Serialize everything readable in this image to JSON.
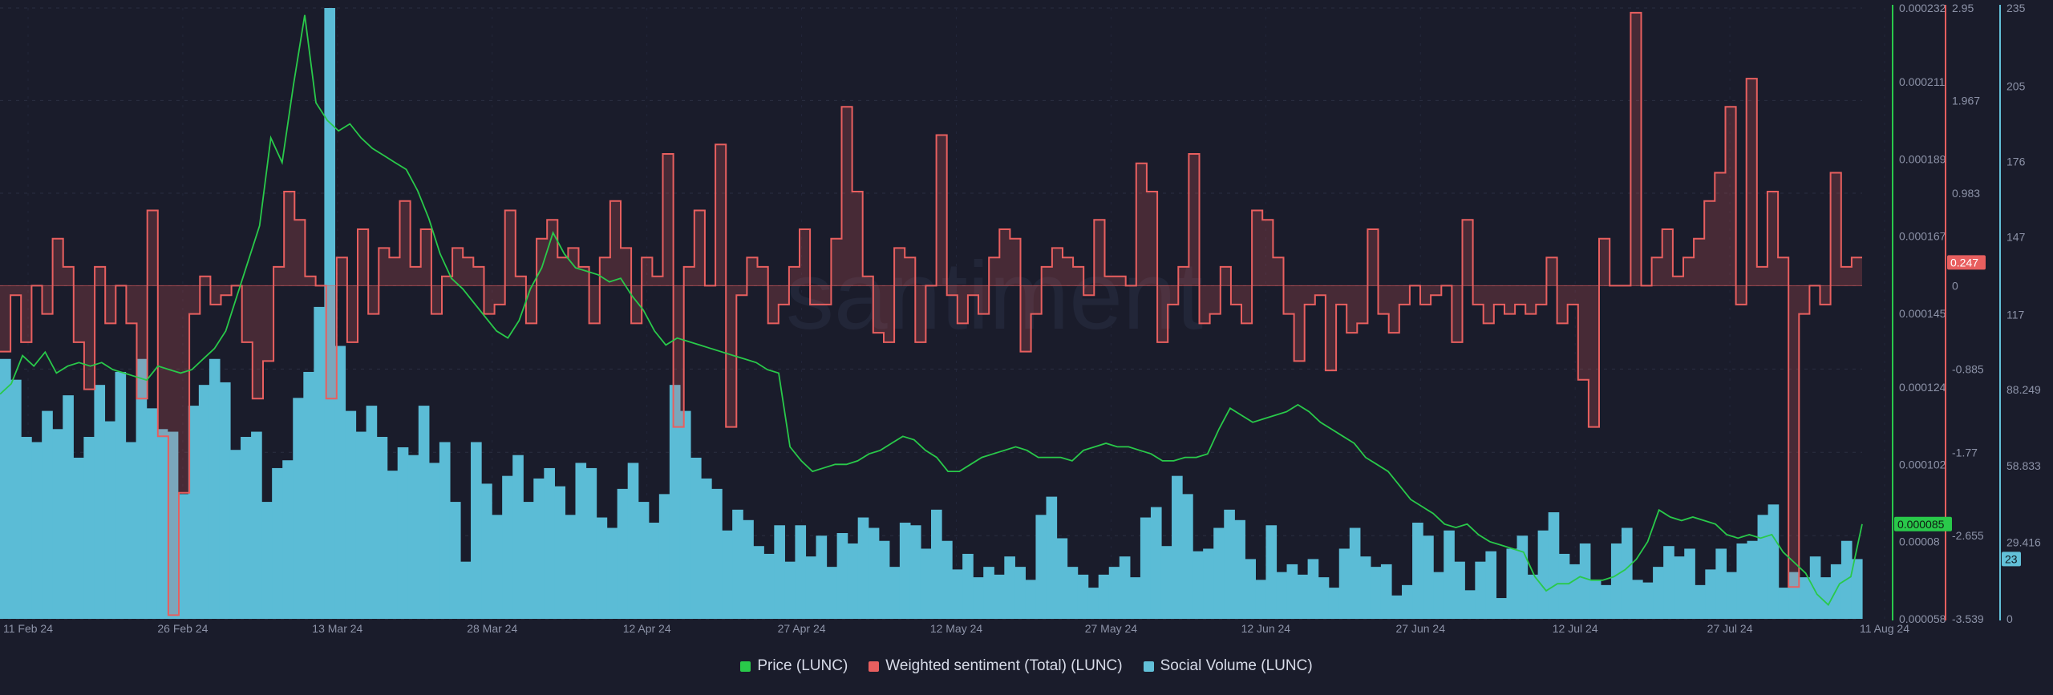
{
  "chart_data": {
    "type": "line",
    "watermark": "santiment",
    "x_ticks": [
      "11 Feb 24",
      "26 Feb 24",
      "13 Mar 24",
      "28 Mar 24",
      "12 Apr 24",
      "27 Apr 24",
      "12 May 24",
      "27 May 24",
      "12 Jun 24",
      "27 Jun 24",
      "12 Jul 24",
      "27 Jul 24",
      "11 Aug 24"
    ],
    "axes": {
      "price": {
        "ticks": [
          "0.000232",
          "0.000211",
          "0.000189",
          "0.000167",
          "0.000145",
          "0.000124",
          "0.000102",
          "0.00008",
          "0.000058"
        ],
        "range": [
          5.8e-05,
          0.000232
        ],
        "color": "#29c94a"
      },
      "sentiment": {
        "ticks": [
          "2.95",
          "1.967",
          "0.983",
          "0",
          "-0.885",
          "-1.77",
          "-2.655",
          "-3.539"
        ],
        "range": [
          -3.539,
          2.95
        ],
        "color": "#e85f5f"
      },
      "social": {
        "ticks": [
          "235",
          "205",
          "176",
          "147",
          "117",
          "88.249",
          "58.833",
          "29.416",
          "0"
        ],
        "range": [
          0,
          235
        ],
        "color": "#62c0d8"
      }
    },
    "current": {
      "price": "0.000085",
      "sentiment": "0.247",
      "social": "23"
    },
    "series": [
      {
        "name": "Price (LUNC)",
        "axis": "price",
        "values": [
          0.000122,
          0.000125,
          0.000133,
          0.00013,
          0.000134,
          0.000128,
          0.00013,
          0.000131,
          0.00013,
          0.000131,
          0.000129,
          0.000128,
          0.000127,
          0.000126,
          0.00013,
          0.000129,
          0.000128,
          0.000129,
          0.000132,
          0.000135,
          0.00014,
          0.00015,
          0.00016,
          0.00017,
          0.000195,
          0.000188,
          0.00021,
          0.00023,
          0.000205,
          0.0002,
          0.000197,
          0.000199,
          0.000195,
          0.000192,
          0.00019,
          0.000188,
          0.000186,
          0.00018,
          0.000172,
          0.000162,
          0.000155,
          0.000152,
          0.000148,
          0.000144,
          0.00014,
          0.000138,
          0.000143,
          0.000152,
          0.000158,
          0.000168,
          0.000162,
          0.000158,
          0.000157,
          0.000156,
          0.000154,
          0.000155,
          0.00015,
          0.000146,
          0.00014,
          0.000136,
          0.000138,
          0.000137,
          0.000136,
          0.000135,
          0.000134,
          0.000133,
          0.000132,
          0.000131,
          0.000129,
          0.000128,
          0.000107,
          0.000103,
          0.0001,
          0.000101,
          0.000102,
          0.000102,
          0.000103,
          0.000105,
          0.000106,
          0.000108,
          0.00011,
          0.000109,
          0.000106,
          0.000104,
          0.0001,
          0.0001,
          0.000102,
          0.000104,
          0.000105,
          0.000106,
          0.000107,
          0.000106,
          0.000104,
          0.000104,
          0.000104,
          0.000103,
          0.000106,
          0.000107,
          0.000108,
          0.000107,
          0.000107,
          0.000106,
          0.000105,
          0.000103,
          0.000103,
          0.000104,
          0.000104,
          0.000105,
          0.000112,
          0.000118,
          0.000116,
          0.000114,
          0.000115,
          0.000116,
          0.000117,
          0.000119,
          0.000117,
          0.000114,
          0.000112,
          0.00011,
          0.000108,
          0.000104,
          0.000102,
          0.0001,
          9.6e-05,
          9.2e-05,
          9e-05,
          8.8e-05,
          8.5e-05,
          8.4e-05,
          8.5e-05,
          8.2e-05,
          8e-05,
          7.9e-05,
          7.8e-05,
          7.7e-05,
          7e-05,
          6.6e-05,
          6.8e-05,
          6.8e-05,
          7e-05,
          6.9e-05,
          6.9e-05,
          7e-05,
          7.2e-05,
          7.5e-05,
          8e-05,
          8.9e-05,
          8.7e-05,
          8.6e-05,
          8.7e-05,
          8.6e-05,
          8.5e-05,
          8.2e-05,
          8.1e-05,
          8.2e-05,
          8.1e-05,
          8.2e-05,
          7.7e-05,
          7.4e-05,
          7.1e-05,
          6.5e-05,
          6.2e-05,
          6.8e-05,
          7e-05,
          8.5e-05
        ]
      },
      {
        "name": "Weighted sentiment (Total) (LUNC)",
        "axis": "sentiment",
        "values": [
          -0.7,
          -0.1,
          -0.6,
          0.0,
          -0.3,
          0.5,
          0.2,
          -0.6,
          -1.1,
          0.2,
          -0.4,
          0.0,
          -0.4,
          -1.2,
          0.8,
          -1.6,
          -3.5,
          -2.2,
          -0.3,
          0.1,
          -0.2,
          -0.1,
          0.0,
          -0.6,
          -1.2,
          -0.8,
          0.2,
          1.0,
          0.7,
          0.1,
          0.0,
          -1.2,
          0.3,
          -0.6,
          0.6,
          -0.3,
          0.4,
          0.3,
          0.9,
          0.2,
          0.6,
          -0.3,
          0.1,
          0.4,
          0.3,
          0.2,
          -0.3,
          -0.2,
          0.8,
          0.1,
          -0.4,
          0.5,
          0.7,
          0.3,
          0.4,
          0.2,
          -0.4,
          0.3,
          0.9,
          0.4,
          -0.4,
          0.3,
          0.1,
          1.4,
          -1.5,
          0.2,
          0.8,
          0.0,
          1.5,
          -1.5,
          -0.1,
          0.3,
          0.2,
          -0.4,
          -0.2,
          0.2,
          0.6,
          -0.2,
          -0.2,
          0.5,
          1.9,
          1.0,
          0.1,
          -0.5,
          -0.6,
          0.4,
          0.3,
          -0.6,
          0.0,
          1.6,
          -0.1,
          -0.4,
          -0.1,
          -0.3,
          0.3,
          0.6,
          0.5,
          -0.7,
          -0.3,
          0.2,
          0.4,
          0.3,
          0.2,
          -0.1,
          0.7,
          0.1,
          0.1,
          0.0,
          1.3,
          1.0,
          -0.6,
          -0.2,
          0.2,
          1.4,
          -0.4,
          -0.3,
          0.2,
          -0.2,
          -0.4,
          0.8,
          0.7,
          0.3,
          -0.3,
          -0.8,
          -0.2,
          -0.1,
          -0.9,
          -0.2,
          -0.5,
          -0.4,
          0.6,
          -0.3,
          -0.5,
          -0.2,
          0.0,
          -0.2,
          -0.1,
          0.0,
          -0.6,
          0.7,
          -0.2,
          -0.4,
          -0.2,
          -0.3,
          -0.2,
          -0.3,
          -0.2,
          0.3,
          -0.4,
          -0.2,
          -1.0,
          -1.5,
          0.5,
          0.0,
          0.0,
          2.9,
          0.0,
          0.3,
          0.6,
          0.1,
          0.3,
          0.5,
          0.9,
          1.2,
          1.9,
          -0.2,
          2.2,
          0.2,
          1.0,
          0.3,
          -3.2,
          -0.3,
          0.0,
          -0.2,
          1.2,
          0.2,
          0.3
        ]
      },
      {
        "name": "Social Volume (LUNC)",
        "axis": "social",
        "values": [
          100,
          92,
          70,
          68,
          80,
          73,
          86,
          62,
          70,
          90,
          76,
          95,
          68,
          100,
          81,
          73,
          72,
          48,
          82,
          90,
          100,
          91,
          65,
          70,
          72,
          45,
          58,
          61,
          85,
          95,
          120,
          235,
          105,
          80,
          72,
          82,
          70,
          57,
          66,
          63,
          82,
          60,
          68,
          45,
          22,
          68,
          52,
          40,
          55,
          63,
          45,
          54,
          58,
          51,
          40,
          60,
          58,
          39,
          35,
          50,
          60,
          45,
          37,
          48,
          90,
          80,
          62,
          54,
          50,
          34,
          42,
          38,
          28,
          25,
          36,
          22,
          36,
          24,
          32,
          20,
          33,
          29,
          39,
          35,
          30,
          20,
          37,
          36,
          27,
          42,
          30,
          19,
          25,
          16,
          20,
          17,
          24,
          20,
          15,
          40,
          47,
          31,
          20,
          17,
          12,
          17,
          20,
          24,
          16,
          39,
          43,
          28,
          55,
          48,
          26,
          27,
          35,
          42,
          38,
          23,
          15,
          36,
          18,
          21,
          17,
          23,
          16,
          12,
          27,
          35,
          24,
          20,
          21,
          9,
          13,
          37,
          32,
          18,
          34,
          22,
          11,
          22,
          26,
          8,
          27,
          32,
          17,
          34,
          41,
          25,
          21,
          29,
          15,
          13,
          29,
          35,
          15,
          14,
          20,
          28,
          24,
          27,
          13,
          19,
          27,
          18,
          29,
          30,
          40,
          44,
          12,
          18,
          16,
          24,
          16,
          21,
          30,
          23
        ]
      }
    ]
  }
}
